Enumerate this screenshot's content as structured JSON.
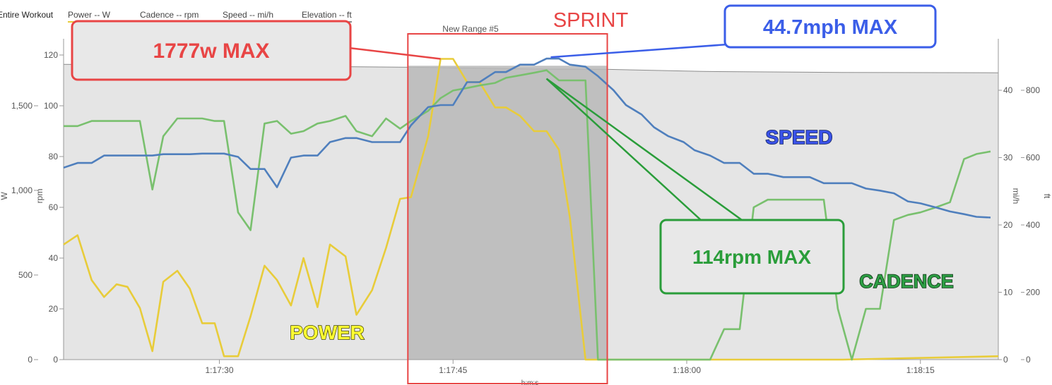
{
  "chart_data": {
    "type": "line",
    "toolbar": {
      "view_label": "Entire Workout",
      "legend": [
        {
          "key": "power",
          "label": "Power  -- W",
          "color": "#e8cc3a"
        },
        {
          "key": "cadence",
          "label": "Cadence  -- rpm",
          "color": "#79c06e"
        },
        {
          "key": "speed",
          "label": "Speed  -- mi/h",
          "color": "#4f7fbd"
        },
        {
          "key": "elevation",
          "label": "Elevation  -- ft",
          "color": "#8c8c8c"
        }
      ]
    },
    "range_label": "New Range #5",
    "axes": {
      "x": {
        "label": "h:m:s",
        "range_seconds": [
          1040,
          1100
        ],
        "ticks": [
          "1:17:30",
          "1:17:45",
          "1:18:00",
          "1:18:15"
        ],
        "tick_seconds": [
          1050,
          1065,
          1080,
          1095
        ]
      },
      "rpm": {
        "label": "rpm",
        "range": [
          0,
          120
        ],
        "ticks": [
          "0",
          "20",
          "40",
          "60",
          "80",
          "100",
          "120"
        ]
      },
      "w": {
        "label": "W",
        "range": [
          0,
          1800
        ],
        "ticks": [
          "0",
          "500",
          "1,000",
          "1,500"
        ],
        "tick_values": [
          0,
          500,
          1000,
          1500
        ]
      },
      "mph": {
        "label": "mi/h",
        "range": [
          0,
          45
        ],
        "ticks": [
          "0",
          "10",
          "20",
          "30",
          "40"
        ]
      },
      "ft": {
        "label": "ft",
        "range": [
          0,
          900
        ],
        "ticks": [
          "0",
          "200",
          "400",
          "600",
          "800"
        ]
      }
    },
    "series": [
      {
        "name": "POWER",
        "unit": "W",
        "color": "#e8cc3a",
        "points": [
          [
            1040,
            680
          ],
          [
            1040.9,
            735
          ],
          [
            1041.8,
            470
          ],
          [
            1042.6,
            370
          ],
          [
            1043.4,
            445
          ],
          [
            1044.1,
            430
          ],
          [
            1044.9,
            305
          ],
          [
            1045.7,
            50
          ],
          [
            1046.4,
            460
          ],
          [
            1047.3,
            525
          ],
          [
            1048.1,
            420
          ],
          [
            1048.9,
            215
          ],
          [
            1049.7,
            215
          ],
          [
            1050.3,
            20
          ],
          [
            1051.2,
            20
          ],
          [
            1052,
            255
          ],
          [
            1052.9,
            555
          ],
          [
            1053.7,
            470
          ],
          [
            1054.6,
            320
          ],
          [
            1055.4,
            600
          ],
          [
            1056.3,
            310
          ],
          [
            1057.1,
            680
          ],
          [
            1058.1,
            610
          ],
          [
            1058.8,
            265
          ],
          [
            1059.8,
            410
          ],
          [
            1060.7,
            660
          ],
          [
            1061.6,
            950
          ],
          [
            1062.3,
            960
          ],
          [
            1063.4,
            1320
          ],
          [
            1064.2,
            1777
          ],
          [
            1065,
            1777
          ],
          [
            1065.9,
            1640
          ],
          [
            1066.7,
            1640
          ],
          [
            1067.7,
            1490
          ],
          [
            1068.4,
            1490
          ],
          [
            1069.3,
            1440
          ],
          [
            1070.2,
            1350
          ],
          [
            1071,
            1350
          ],
          [
            1071.8,
            1240
          ],
          [
            1072.5,
            840
          ],
          [
            1073.5,
            0
          ],
          [
            1075,
            0
          ],
          [
            1090,
            0
          ],
          [
            1100,
            20
          ]
        ]
      },
      {
        "name": "CADENCE",
        "unit": "rpm",
        "color": "#79c06e",
        "points": [
          [
            1040,
            92
          ],
          [
            1040.9,
            92
          ],
          [
            1041.8,
            94
          ],
          [
            1042.6,
            94
          ],
          [
            1043.4,
            94
          ],
          [
            1044.1,
            94
          ],
          [
            1044.9,
            94
          ],
          [
            1045.7,
            67
          ],
          [
            1046.4,
            88
          ],
          [
            1047.3,
            95
          ],
          [
            1048.1,
            95
          ],
          [
            1048.9,
            95
          ],
          [
            1049.7,
            94
          ],
          [
            1050.3,
            94
          ],
          [
            1051.2,
            58
          ],
          [
            1052,
            51
          ],
          [
            1052.9,
            93
          ],
          [
            1053.7,
            94
          ],
          [
            1054.6,
            89
          ],
          [
            1055.4,
            90
          ],
          [
            1056.3,
            93
          ],
          [
            1057.1,
            94
          ],
          [
            1058.1,
            96
          ],
          [
            1058.8,
            90
          ],
          [
            1059.8,
            88
          ],
          [
            1060.7,
            95
          ],
          [
            1061.6,
            91
          ],
          [
            1062.3,
            94
          ],
          [
            1063.4,
            98
          ],
          [
            1064.2,
            103
          ],
          [
            1065,
            106
          ],
          [
            1065.9,
            107
          ],
          [
            1066.7,
            108
          ],
          [
            1067.7,
            109
          ],
          [
            1068.4,
            111
          ],
          [
            1069.3,
            112
          ],
          [
            1070.2,
            113
          ],
          [
            1071,
            114
          ],
          [
            1071.8,
            110
          ],
          [
            1072.5,
            110
          ],
          [
            1073.5,
            110
          ],
          [
            1074.3,
            0
          ],
          [
            1075,
            0
          ],
          [
            1081.5,
            0
          ],
          [
            1082.4,
            12
          ],
          [
            1083.4,
            12
          ],
          [
            1084.3,
            60
          ],
          [
            1085.2,
            63
          ],
          [
            1086.2,
            63
          ],
          [
            1087.1,
            63
          ],
          [
            1087.9,
            63
          ],
          [
            1088.8,
            63
          ],
          [
            1089.7,
            20
          ],
          [
            1090.6,
            0
          ],
          [
            1091.5,
            20
          ],
          [
            1092.4,
            20
          ],
          [
            1093.3,
            55
          ],
          [
            1094.2,
            57
          ],
          [
            1095,
            58
          ],
          [
            1096,
            60
          ],
          [
            1096.9,
            62
          ],
          [
            1097.8,
            79
          ],
          [
            1098.6,
            81
          ],
          [
            1099.5,
            82
          ]
        ]
      },
      {
        "name": "SPEED",
        "unit": "mph",
        "color": "#4f7fbd",
        "points": [
          [
            1040,
            28.5
          ],
          [
            1040.9,
            29.2
          ],
          [
            1041.8,
            29.2
          ],
          [
            1042.6,
            30.3
          ],
          [
            1043.4,
            30.3
          ],
          [
            1044.1,
            30.3
          ],
          [
            1044.9,
            30.3
          ],
          [
            1045.7,
            30.3
          ],
          [
            1046.4,
            30.5
          ],
          [
            1047.3,
            30.5
          ],
          [
            1048.1,
            30.5
          ],
          [
            1048.9,
            30.6
          ],
          [
            1049.7,
            30.6
          ],
          [
            1050.3,
            30.6
          ],
          [
            1051.2,
            30.1
          ],
          [
            1052,
            28.3
          ],
          [
            1052.9,
            28.3
          ],
          [
            1053.7,
            25.6
          ],
          [
            1054.6,
            30
          ],
          [
            1055.4,
            30.3
          ],
          [
            1056.3,
            30.3
          ],
          [
            1057.1,
            32.3
          ],
          [
            1058.1,
            32.9
          ],
          [
            1058.8,
            32.9
          ],
          [
            1059.8,
            32.3
          ],
          [
            1060.7,
            32.3
          ],
          [
            1061.6,
            32.3
          ],
          [
            1062.3,
            34.8
          ],
          [
            1063.4,
            37.5
          ],
          [
            1064.2,
            37.8
          ],
          [
            1065,
            37.8
          ],
          [
            1065.9,
            41.2
          ],
          [
            1066.7,
            41.2
          ],
          [
            1067.7,
            42.7
          ],
          [
            1068.4,
            42.7
          ],
          [
            1069.3,
            43.8
          ],
          [
            1070.2,
            43.8
          ],
          [
            1071,
            44.7
          ],
          [
            1071.8,
            44.7
          ],
          [
            1072.5,
            43.8
          ],
          [
            1073.5,
            43.5
          ],
          [
            1074.3,
            42.1
          ],
          [
            1075.3,
            40
          ],
          [
            1076.1,
            37.8
          ],
          [
            1077.1,
            36.4
          ],
          [
            1077.9,
            34.5
          ],
          [
            1078.8,
            33.2
          ],
          [
            1079.8,
            32.3
          ],
          [
            1080.5,
            31.1
          ],
          [
            1081.5,
            30.3
          ],
          [
            1082.4,
            29.2
          ],
          [
            1083.4,
            29.2
          ],
          [
            1084.3,
            27.6
          ],
          [
            1085.2,
            27.6
          ],
          [
            1086.2,
            27.1
          ],
          [
            1087.1,
            27.1
          ],
          [
            1087.9,
            27.1
          ],
          [
            1088.8,
            26.2
          ],
          [
            1089.7,
            26.2
          ],
          [
            1090.6,
            26.2
          ],
          [
            1091.5,
            25.4
          ],
          [
            1092.4,
            25.1
          ],
          [
            1093.3,
            24.7
          ],
          [
            1094.2,
            23.5
          ],
          [
            1095,
            23.2
          ],
          [
            1096,
            22.6
          ],
          [
            1096.9,
            22
          ],
          [
            1097.8,
            21.6
          ],
          [
            1098.6,
            21.2
          ],
          [
            1099.5,
            21.1
          ]
        ]
      },
      {
        "name": "Elevation",
        "unit": "ft",
        "color": "#8c8c8c",
        "points": [
          [
            1040,
            877
          ],
          [
            1052,
            872
          ],
          [
            1063,
            868
          ],
          [
            1070,
            863
          ],
          [
            1075,
            862
          ],
          [
            1081,
            856
          ],
          [
            1090,
            853
          ],
          [
            1100,
            852
          ]
        ]
      }
    ],
    "sprint": {
      "label": "SPRINT",
      "range_seconds": [
        1062.1,
        1074.9
      ]
    },
    "annotations": [
      {
        "text": "1777w MAX",
        "color": "#e84545",
        "target": [
          1064.2,
          1777
        ],
        "series": "POWER"
      },
      {
        "text": "44.7mph MAX",
        "color": "#3b5ee8",
        "target": [
          1071,
          44.7
        ],
        "series": "SPEED"
      },
      {
        "text": "114rpm MAX",
        "color": "#2a9d3a",
        "target": [
          1071,
          114
        ],
        "series": "CADENCE"
      }
    ],
    "series_labels": [
      {
        "text": "POWER",
        "fill": "#ffff33",
        "stroke": "#444400"
      },
      {
        "text": "SPEED",
        "fill": "#3a52e8",
        "stroke": "#10205a"
      },
      {
        "text": "CADENCE",
        "fill": "#2d9e44",
        "stroke": "#0c3012"
      }
    ]
  }
}
